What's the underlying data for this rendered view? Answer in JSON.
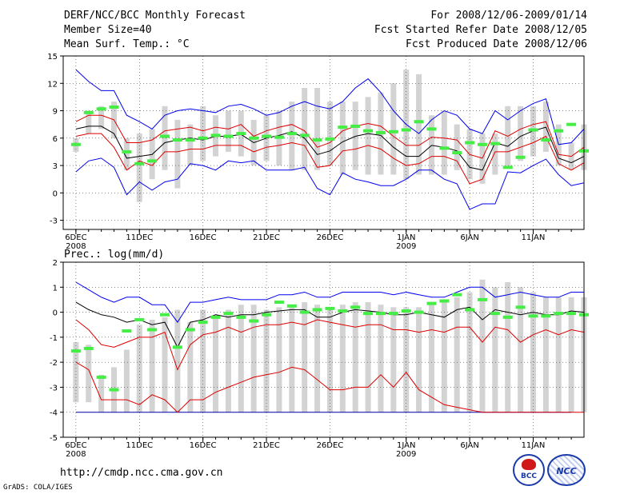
{
  "header": {
    "title": "DERF/NCC/BCC Monthly Forecast",
    "member_size": "Member Size=40",
    "variable": "Mean Surf. Temp.: °C",
    "period": "For 2008/12/06-2009/01/14",
    "started": "Fcst Started Refer Date 2008/12/05",
    "produced": "Fcst Produced Date 2008/12/06"
  },
  "footer": {
    "url": "http://cmdp.ncc.cma.gov.cn",
    "credit": "GrADS: COLA/IGES",
    "logo_left": "BCC",
    "logo_right": "NCC"
  },
  "colors": {
    "max_min": "#0000ee",
    "spread": "#dd0000",
    "mean": "#000000",
    "box": "#d3d3d3",
    "climate": "#44ee44",
    "floor": "#0000aa"
  },
  "chart_data": [
    {
      "type": "line",
      "title": "Mean Surf. Temp.: °C",
      "ylim": [
        -4,
        15
      ],
      "yticks": [
        -3,
        0,
        3,
        6,
        9,
        12,
        15
      ],
      "xticks": [
        {
          "day": 1,
          "label": "6DEC",
          "sub": "2008"
        },
        {
          "day": 6,
          "label": "11DEC",
          "sub": ""
        },
        {
          "day": 11,
          "label": "16DEC",
          "sub": ""
        },
        {
          "day": 16,
          "label": "21DEC",
          "sub": ""
        },
        {
          "day": 21,
          "label": "26DEC",
          "sub": ""
        },
        {
          "day": 27,
          "label": "1JAN",
          "sub": "2009"
        },
        {
          "day": 32,
          "label": "6JAN",
          "sub": ""
        },
        {
          "day": 37,
          "label": "11JAN",
          "sub": ""
        }
      ],
      "x_range": [
        0,
        41
      ],
      "days": 40,
      "series": [
        {
          "name": "max",
          "role": "max_min",
          "values": [
            13.5,
            12.2,
            11.2,
            11.2,
            8.5,
            7.8,
            7,
            8.5,
            9,
            9.2,
            9,
            8.8,
            9.5,
            9.7,
            9.2,
            8.5,
            8.8,
            9.5,
            10,
            9.5,
            9.2,
            10,
            11.5,
            12.5,
            11,
            9,
            7.5,
            6.5,
            8,
            9,
            8.5,
            7,
            6.5,
            9,
            8,
            9,
            9.8,
            10.3,
            5.3,
            5.5,
            7
          ]
        },
        {
          "name": "upper",
          "role": "spread",
          "values": [
            7.8,
            8.5,
            8.5,
            8.0,
            5.5,
            5.5,
            5.8,
            6.8,
            7.0,
            7.2,
            6.8,
            7.2,
            7.0,
            7.5,
            6.2,
            6.8,
            7.2,
            7.5,
            6.8,
            5.0,
            5.5,
            6.8,
            7.3,
            7.6,
            7.3,
            6.2,
            5.2,
            5.2,
            6.1,
            6.0,
            5.8,
            4.2,
            3.8,
            6.8,
            6.2,
            7.0,
            7.5,
            7.8,
            4.2,
            4.0,
            5.0
          ]
        },
        {
          "name": "mean",
          "role": "mean",
          "values": [
            7,
            7.3,
            7.3,
            6.5,
            3.8,
            4.0,
            4.2,
            5.5,
            5.8,
            6.0,
            5.8,
            6.2,
            6.2,
            6.4,
            5.5,
            6.0,
            6.3,
            6.7,
            6.0,
            4.2,
            4.6,
            5.6,
            6.2,
            6.5,
            6.3,
            5.0,
            4.0,
            4.0,
            5.2,
            5.0,
            4.6,
            2.8,
            2.5,
            5.5,
            5.1,
            6.2,
            6.8,
            7.2,
            3.8,
            3.3,
            4.0
          ]
        },
        {
          "name": "lower",
          "role": "spread",
          "values": [
            6.2,
            6.5,
            6.5,
            5.0,
            2.5,
            3.5,
            3.0,
            4.5,
            4.5,
            4.8,
            4.8,
            5.2,
            5.2,
            5.2,
            4.5,
            5.0,
            5.2,
            5.5,
            5.2,
            2.8,
            3.0,
            4.6,
            4.8,
            5.2,
            4.8,
            3.8,
            3.0,
            3.2,
            4.0,
            4.0,
            3.5,
            1.0,
            1.5,
            4.5,
            4.5,
            5.0,
            5.5,
            6.2,
            3.2,
            2.5,
            3.3
          ]
        },
        {
          "name": "min",
          "role": "max_min",
          "values": [
            2.3,
            3.5,
            3.8,
            2.8,
            -0.2,
            1.2,
            0.3,
            1.2,
            1.5,
            3.2,
            3.0,
            2.5,
            3.5,
            3.3,
            3.5,
            2.5,
            2.5,
            2.5,
            2.8,
            0.5,
            -0.2,
            2.2,
            1.5,
            1.2,
            0.8,
            0.8,
            1.5,
            2.5,
            2.5,
            1.5,
            1.0,
            -1.8,
            -1.2,
            -1.2,
            2.3,
            2.2,
            3.0,
            3.7,
            2.0,
            0.8,
            1.1
          ]
        }
      ],
      "boxes": [
        [
          4.5,
          6
        ],
        [
          6.5,
          9
        ],
        [
          7.0,
          9.5
        ],
        [
          6.0,
          10.0
        ],
        [
          2.5,
          6.0
        ],
        [
          -1.0,
          6.5
        ],
        [
          1.5,
          7.0
        ],
        [
          2.5,
          9.5
        ],
        [
          0.5,
          8.0
        ],
        [
          3.0,
          7.5
        ],
        [
          3.5,
          9.5
        ],
        [
          4.0,
          8.5
        ],
        [
          4.5,
          9.0
        ],
        [
          4.0,
          9.0
        ],
        [
          3.0,
          8.0
        ],
        [
          3.5,
          8.5
        ],
        [
          3.0,
          9.0
        ],
        [
          2.5,
          10.0
        ],
        [
          2.5,
          11.5
        ],
        [
          2.5,
          11.5
        ],
        [
          3.0,
          10.0
        ],
        [
          2.0,
          10.0
        ],
        [
          2.5,
          10.0
        ],
        [
          2.0,
          10.5
        ],
        [
          2.0,
          11.0
        ],
        [
          2.0,
          12.0
        ],
        [
          1.5,
          13.5
        ],
        [
          2.0,
          13.0
        ],
        [
          2.0,
          8.5
        ],
        [
          2.0,
          9.0
        ],
        [
          2.5,
          7.5
        ],
        [
          1.5,
          7.0
        ],
        [
          1.0,
          6.5
        ],
        [
          2.0,
          6.5
        ],
        [
          3.0,
          9.5
        ],
        [
          3.5,
          9.5
        ],
        [
          4.0,
          9.5
        ],
        [
          4.5,
          10.0
        ],
        [
          3.0,
          7.5
        ],
        [
          2.5,
          5.5
        ],
        [
          2.5,
          7.5
        ]
      ],
      "climate": [
        5.3,
        8.8,
        9.2,
        9.4,
        4.5,
        3.2,
        3.5,
        6.2,
        5.8,
        5.8,
        6.0,
        6.3,
        6.2,
        6.5,
        6.0,
        6.2,
        6.1,
        6.5,
        6.3,
        5.8,
        5.9,
        7.2,
        7.3,
        6.8,
        6.6,
        6.7,
        6.9,
        7.8,
        7.0,
        4.9,
        4.4,
        5.5,
        5.3,
        5.4,
        2.8,
        3.9,
        6.9,
        5.8,
        6.8,
        7.5,
        4.6
      ]
    },
    {
      "type": "line",
      "title": "Prec.: log(mm/d)",
      "ylim": [
        -5,
        2
      ],
      "yticks": [
        -5,
        -4,
        -3,
        -2,
        -1,
        0,
        1,
        2
      ],
      "xticks": [
        {
          "day": 1,
          "label": "6DEC",
          "sub": "2008"
        },
        {
          "day": 6,
          "label": "11DEC",
          "sub": ""
        },
        {
          "day": 11,
          "label": "16DEC",
          "sub": ""
        },
        {
          "day": 16,
          "label": "21DEC",
          "sub": ""
        },
        {
          "day": 21,
          "label": "26DEC",
          "sub": ""
        },
        {
          "day": 27,
          "label": "1JAN",
          "sub": "2009"
        },
        {
          "day": 32,
          "label": "6JAN",
          "sub": ""
        },
        {
          "day": 37,
          "label": "11JAN",
          "sub": ""
        }
      ],
      "x_range": [
        0,
        41
      ],
      "days": 40,
      "floor": -4,
      "series": [
        {
          "name": "max",
          "role": "max_min",
          "values": [
            1.2,
            0.9,
            0.6,
            0.4,
            0.6,
            0.6,
            0.3,
            0.3,
            -0.4,
            0.4,
            0.4,
            0.5,
            0.6,
            0.5,
            0.5,
            0.5,
            0.7,
            0.7,
            0.8,
            0.6,
            0.6,
            0.8,
            0.8,
            0.8,
            0.8,
            0.7,
            0.8,
            0.7,
            0.6,
            0.6,
            0.8,
            1.0,
            1.0,
            0.6,
            0.7,
            0.8,
            0.7,
            0.6,
            0.6,
            0.8,
            0.8
          ]
        },
        {
          "name": "upper",
          "role": "spread",
          "values": [
            -0.3,
            -0.7,
            -1.3,
            -1.4,
            -1.2,
            -1.0,
            -1.0,
            -0.8,
            -2.3,
            -1.3,
            -0.9,
            -0.8,
            -0.6,
            -0.8,
            -0.6,
            -0.5,
            -0.5,
            -0.4,
            -0.5,
            -0.3,
            -0.4,
            -0.5,
            -0.6,
            -0.5,
            -0.5,
            -0.7,
            -0.7,
            -0.8,
            -0.7,
            -0.8,
            -0.6,
            -0.6,
            -1.2,
            -0.6,
            -0.7,
            -1.2,
            -0.9,
            -0.7,
            -0.9,
            -0.7,
            -0.8
          ]
        },
        {
          "name": "mean",
          "role": "mean",
          "values": [
            0.4,
            0.1,
            -0.1,
            -0.2,
            -0.4,
            -0.3,
            -0.5,
            -0.4,
            -1.4,
            -0.4,
            -0.3,
            -0.1,
            -0.2,
            -0.1,
            -0.1,
            0,
            0.05,
            0.1,
            0.1,
            -0.2,
            -0.2,
            0,
            0.1,
            0.05,
            0,
            -0.1,
            -0.1,
            0,
            -0.1,
            -0.2,
            0.1,
            0.2,
            -0.3,
            0.1,
            0,
            -0.1,
            0,
            -0.1,
            -0.1,
            0.05,
            0
          ]
        },
        {
          "name": "lower",
          "role": "spread",
          "values": [
            -2.0,
            -2.3,
            -3.5,
            -3.5,
            -3.5,
            -3.7,
            -3.3,
            -3.5,
            -4.0,
            -3.5,
            -3.5,
            -3.2,
            -3.0,
            -2.8,
            -2.6,
            -2.5,
            -2.4,
            -2.2,
            -2.3,
            -2.7,
            -3.1,
            -3.1,
            -3.0,
            -3.0,
            -2.5,
            -3.0,
            -2.4,
            -3.1,
            -3.4,
            -3.7,
            -3.8,
            -3.9,
            -4.0,
            -4.0,
            -4.0,
            -4.0,
            -4.0,
            -4.0,
            -4.0,
            -4.0,
            -4.0
          ]
        }
      ],
      "boxes": [
        [
          -3.6,
          -1.2
        ],
        [
          -3.6,
          -1.3
        ],
        [
          -4.0,
          -2.5
        ],
        [
          -4.0,
          -2.2
        ],
        [
          -4.0,
          -1.5
        ],
        [
          -4.0,
          -0.5
        ],
        [
          -4.0,
          -0.3
        ],
        [
          -4.0,
          -0.2
        ],
        [
          -4.0,
          0.1
        ],
        [
          -4.0,
          -0.4
        ],
        [
          -4.0,
          0.1
        ],
        [
          -4.0,
          -0.2
        ],
        [
          -4.0,
          0.1
        ],
        [
          -4.0,
          0.3
        ],
        [
          -4.0,
          0.3
        ],
        [
          -4.0,
          0.1
        ],
        [
          -4.0,
          0.2
        ],
        [
          -4.0,
          0.2
        ],
        [
          -4.0,
          0.4
        ],
        [
          -4.0,
          0.3
        ],
        [
          -4.0,
          0.2
        ],
        [
          -4.0,
          0.3
        ],
        [
          -4.0,
          0.4
        ],
        [
          -4.0,
          0.4
        ],
        [
          -4.0,
          0.3
        ],
        [
          -4.0,
          0.2
        ],
        [
          -4.0,
          0.2
        ],
        [
          -4.0,
          0.2
        ],
        [
          -4.0,
          0.4
        ],
        [
          -4.0,
          0.5
        ],
        [
          -4.0,
          0.6
        ],
        [
          -4.0,
          0.8
        ],
        [
          -4.0,
          1.3
        ],
        [
          -4.0,
          1.0
        ],
        [
          -4.0,
          1.2
        ],
        [
          -4.0,
          1.0
        ],
        [
          -4.0,
          0.8
        ],
        [
          -4.0,
          0.6
        ],
        [
          -4.0,
          0.6
        ],
        [
          -4.0,
          0.6
        ],
        [
          -4.0,
          0.6
        ]
      ],
      "climate": [
        -1.55,
        -1.45,
        -2.6,
        -3.1,
        -0.75,
        -0.3,
        -0.7,
        -0.1,
        -1.4,
        -0.7,
        -0.4,
        -0.2,
        -0.05,
        -0.2,
        -0.35,
        -0.1,
        0.4,
        0.25,
        0,
        0.1,
        0.15,
        0.05,
        0.2,
        -0.05,
        -0.05,
        -0.05,
        0.05,
        0,
        0.35,
        0.45,
        0.7,
        0.1,
        0.5,
        -0.05,
        -0.2,
        0.2,
        -0.15,
        -0.15,
        -0.05,
        -0.05,
        -0.1
      ]
    }
  ]
}
